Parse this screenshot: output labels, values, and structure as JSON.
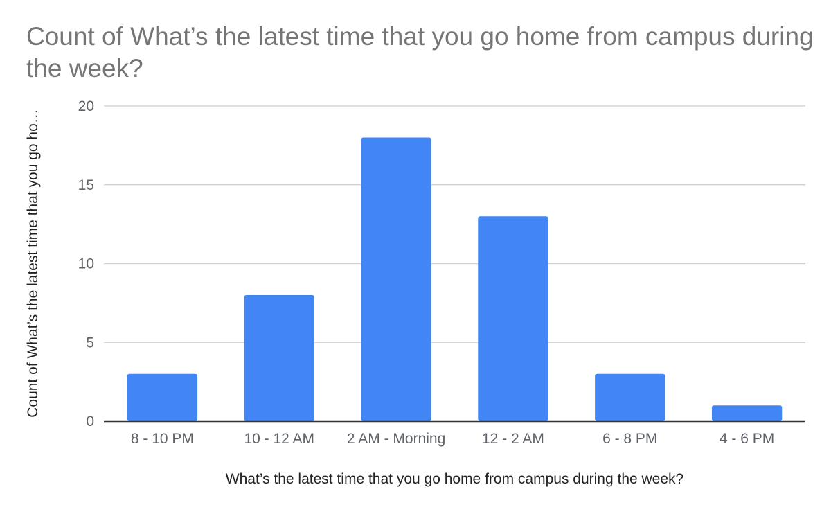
{
  "chart_data": {
    "type": "bar",
    "title": "Count of What’s the latest time that you go home from campus during the week?",
    "xlabel": "What’s the latest time that you go home from campus during the week?",
    "ylabel": "Count of What’s the latest time that you go ho…",
    "categories": [
      "8 - 10 PM",
      "10 - 12 AM",
      "2 AM - Morning",
      "12 - 2 AM",
      "6 - 8 PM",
      "4 - 6 PM"
    ],
    "series": [
      {
        "values": [
          3,
          8,
          18,
          13,
          3,
          1
        ]
      }
    ],
    "ylim": [
      0,
      20
    ],
    "yticks": [
      0,
      5,
      10,
      15,
      20
    ],
    "grid": true,
    "legend": "none",
    "colors": {
      "bar": "#4285f4",
      "grid": "#cccccc",
      "axis": "#333333",
      "tick_text": "#5f6368",
      "title_text": "#757575",
      "axis_title_text": "#222222"
    }
  }
}
